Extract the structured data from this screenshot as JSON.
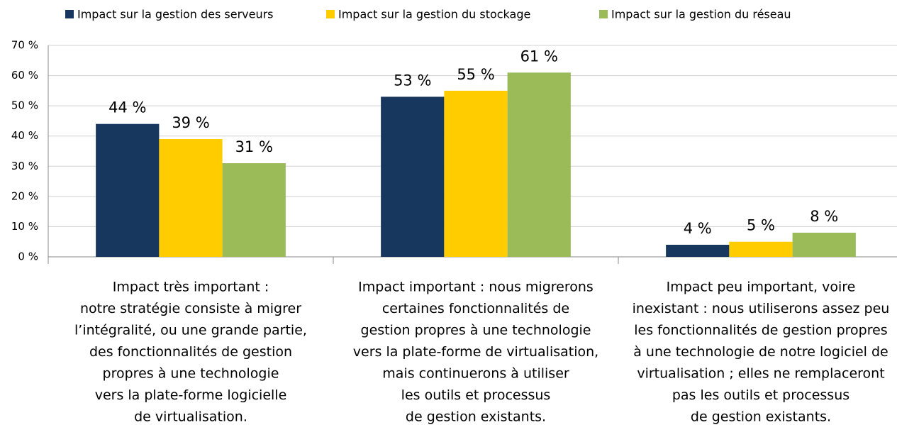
{
  "chart_data": {
    "type": "bar",
    "categories": [
      [
        "Impact très important :",
        "notre stratégie consiste à migrer",
        "l’intégralité, ou une grande partie,",
        "des fonctionnalités de gestion",
        "propres à une technologie",
        "vers la plate-forme logicielle",
        "de virtualisation."
      ],
      [
        "Impact important : nous migrerons",
        "certaines fonctionnalités de",
        "gestion propres à une technologie",
        "vers la plate-forme de virtualisation,",
        "mais continuerons à utiliser",
        "les outils et processus",
        "de gestion existants."
      ],
      [
        "Impact peu important, voire",
        "inexistant : nous utiliserons assez peu",
        "les fonctionnalités de gestion propres",
        "à une technologie de notre logiciel de",
        "virtualisation ; elles ne remplaceront",
        "pas les outils et processus",
        "de gestion existants."
      ]
    ],
    "series": [
      {
        "name": "Impact sur la gestion des serveurs",
        "color": "#17375e",
        "values": [
          44,
          53,
          4
        ],
        "value_labels": [
          "44 %",
          "53 %",
          "4 %"
        ]
      },
      {
        "name": "Impact sur la gestion du stockage",
        "color": "#ffcc00",
        "values": [
          39,
          55,
          5
        ],
        "value_labels": [
          "39 %",
          "55 %",
          "5 %"
        ]
      },
      {
        "name": "Impact sur la gestion du réseau",
        "color": "#9bbb59",
        "values": [
          31,
          61,
          8
        ],
        "value_labels": [
          "31 %",
          "61 %",
          "8 %"
        ]
      }
    ],
    "ylim": [
      0,
      70
    ],
    "yticks": [
      {
        "value": 0,
        "label": "0 %"
      },
      {
        "value": 10,
        "label": "10 %"
      },
      {
        "value": 20,
        "label": "20 %"
      },
      {
        "value": 30,
        "label": "30 %"
      },
      {
        "value": 40,
        "label": "40 %"
      },
      {
        "value": 50,
        "label": "50 %"
      },
      {
        "value": 60,
        "label": "60 %"
      },
      {
        "value": 70,
        "label": "70 %"
      }
    ],
    "grid": true,
    "legend": "top"
  }
}
